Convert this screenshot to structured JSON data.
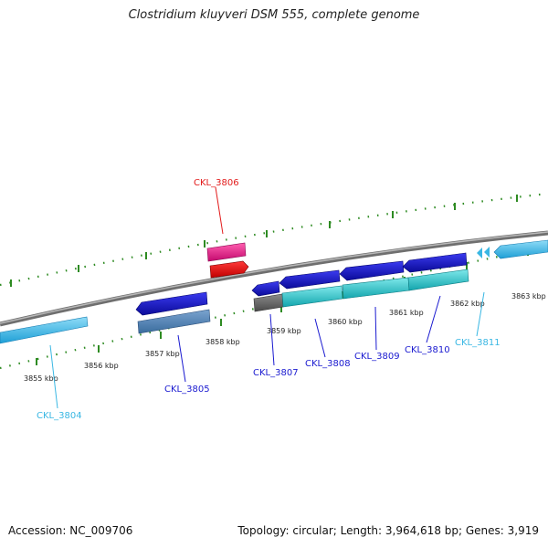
{
  "title": "Clostridium kluyveri DSM 555, complete genome",
  "footer": {
    "accession": "Accession: NC_009706",
    "summary": "Topology: circular; Length: 3,964,618 bp; Genes: 3,919"
  },
  "colors": {
    "backbone": "#8a8a8a",
    "tick": "#2e8b22",
    "label_blue": "#1a1ad0",
    "label_cyan": "#39b7e3",
    "label_red": "#e21b1b"
  },
  "kbp_labels": [
    "3855 kbp",
    "3856 kbp",
    "3857 kbp",
    "3858 kbp",
    "3859 kbp",
    "3860 kbp",
    "3861 kbp",
    "3862 kbp",
    "3863 kbp"
  ],
  "genes": [
    {
      "id": "CKL_3804",
      "color": "#39b7e3"
    },
    {
      "id": "CKL_3805",
      "color": "#1a1ad0"
    },
    {
      "id": "CKL_3806",
      "color": "#e21b1b"
    },
    {
      "id": "CKL_3807",
      "color": "#1a1ad0"
    },
    {
      "id": "CKL_3808",
      "color": "#1a1ad0"
    },
    {
      "id": "CKL_3809",
      "color": "#1a1ad0"
    },
    {
      "id": "CKL_3810",
      "color": "#1a1ad0"
    },
    {
      "id": "CKL_3811",
      "color": "#39b7e3"
    }
  ]
}
